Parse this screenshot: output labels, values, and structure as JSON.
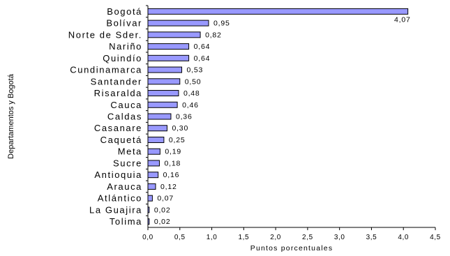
{
  "chart_data": {
    "type": "bar",
    "orientation": "horizontal",
    "categories": [
      "Bogotá",
      "Bolívar",
      "Norte de Sder.",
      "Nariño",
      "Quindío",
      "Cundinamarca",
      "Santander",
      "Risaralda",
      "Cauca",
      "Caldas",
      "Casanare",
      "Caquetá",
      "Meta",
      "Sucre",
      "Antioquia",
      "Arauca",
      "Atlántico",
      "La Guajira",
      "Tolima"
    ],
    "values": [
      4.07,
      0.95,
      0.82,
      0.64,
      0.64,
      0.53,
      0.5,
      0.48,
      0.46,
      0.36,
      0.3,
      0.25,
      0.19,
      0.18,
      0.16,
      0.12,
      0.07,
      0.02,
      0.02
    ],
    "value_labels": [
      "4,07",
      "0,95",
      "0,82",
      "0,64",
      "0,64",
      "0,53",
      "0,50",
      "0,48",
      "0,46",
      "0,36",
      "0,30",
      "0,25",
      "0,19",
      "0,18",
      "0,16",
      "0,12",
      "0,07",
      "0,02",
      "0,02"
    ],
    "xlabel": "Puntos porcentuales",
    "ylabel": "Departamentos y Bogotá",
    "xlim": [
      0,
      4.5
    ],
    "xticks": [
      0,
      0.5,
      1,
      1.5,
      2,
      2.5,
      3,
      3.5,
      4,
      4.5
    ],
    "xtick_labels": [
      "0,0",
      "0,5",
      "1,0",
      "1,5",
      "2,0",
      "2,5",
      "3,0",
      "3,5",
      "4,0",
      "4,5"
    ],
    "grid": false,
    "bar_color": "#9999ff",
    "bar_edge_color": "#000000"
  }
}
